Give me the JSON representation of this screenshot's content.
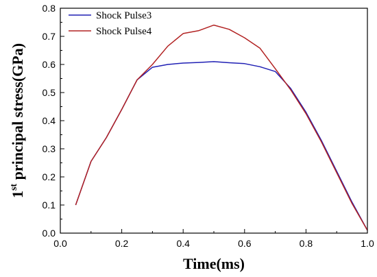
{
  "chart_data": {
    "type": "line",
    "xlabel": "Time(ms)",
    "ylabel_prefix": "1",
    "ylabel_superscript": "st",
    "ylabel_rest": " principal stress(GPa)",
    "xlim": [
      0.0,
      1.0
    ],
    "ylim": [
      0.0,
      0.8
    ],
    "xticks": [
      "0.0",
      "0.2",
      "0.4",
      "0.6",
      "0.8",
      "1.0"
    ],
    "yticks": [
      "0.0",
      "0.1",
      "0.2",
      "0.3",
      "0.4",
      "0.5",
      "0.6",
      "0.7",
      "0.8"
    ],
    "legend_position": "top-left",
    "grid": false,
    "series": [
      {
        "name": "Shock Pulse3",
        "color": "#1f1fb4",
        "x": [
          0.05,
          0.1,
          0.15,
          0.2,
          0.25,
          0.3,
          0.35,
          0.4,
          0.45,
          0.5,
          0.55,
          0.6,
          0.65,
          0.7,
          0.75,
          0.8,
          0.85,
          0.9,
          0.95,
          1.0
        ],
        "y": [
          0.1,
          0.255,
          0.34,
          0.44,
          0.545,
          0.59,
          0.6,
          0.605,
          0.607,
          0.61,
          0.606,
          0.603,
          0.592,
          0.575,
          0.515,
          0.43,
          0.33,
          0.22,
          0.11,
          0.01
        ]
      },
      {
        "name": "Shock Pulse4",
        "color": "#b22222",
        "x": [
          0.05,
          0.1,
          0.15,
          0.2,
          0.25,
          0.3,
          0.35,
          0.4,
          0.45,
          0.5,
          0.55,
          0.6,
          0.65,
          0.7,
          0.75,
          0.8,
          0.85,
          0.9,
          0.95,
          1.0
        ],
        "y": [
          0.1,
          0.255,
          0.34,
          0.44,
          0.545,
          0.6,
          0.665,
          0.71,
          0.72,
          0.74,
          0.725,
          0.695,
          0.658,
          0.585,
          0.51,
          0.425,
          0.325,
          0.215,
          0.105,
          0.01
        ]
      }
    ]
  }
}
